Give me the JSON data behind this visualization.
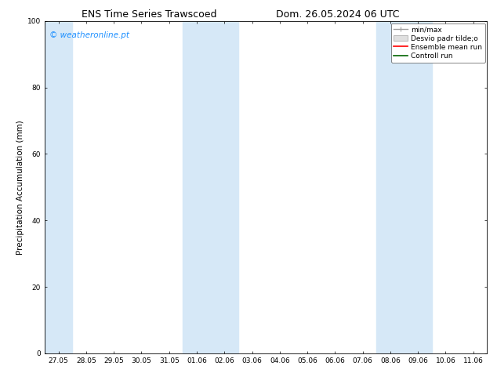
{
  "title_left": "ENS Time Series Trawscoed",
  "title_right": "Dom. 26.05.2024 06 UTC",
  "ylabel": "Precipitation Accumulation (mm)",
  "ylim": [
    0,
    100
  ],
  "yticks": [
    0,
    20,
    40,
    60,
    80,
    100
  ],
  "x_tick_labels": [
    "27.05",
    "28.05",
    "29.05",
    "30.05",
    "31.05",
    "01.06",
    "02.06",
    "03.06",
    "04.06",
    "05.06",
    "06.06",
    "07.06",
    "08.06",
    "09.06",
    "10.06",
    "11.06"
  ],
  "x_tick_positions": [
    0,
    1,
    2,
    3,
    4,
    5,
    6,
    7,
    8,
    9,
    10,
    11,
    12,
    13,
    14,
    15
  ],
  "xlim": [
    -0.5,
    15.5
  ],
  "shaded_regions": [
    {
      "x_start": -0.5,
      "x_end": 0.5,
      "color": "#d6e8f7"
    },
    {
      "x_start": 4.5,
      "x_end": 6.5,
      "color": "#d6e8f7"
    },
    {
      "x_start": 11.5,
      "x_end": 13.5,
      "color": "#d6e8f7"
    }
  ],
  "legend_entries": [
    {
      "label": "min/max",
      "color": "#a0a0a0"
    },
    {
      "label": "Desvio padr tilde;o",
      "facecolor": "#e0e0e0",
      "edgecolor": "#a0a0a0"
    },
    {
      "label": "Ensemble mean run",
      "color": "#ff0000"
    },
    {
      "label": "Controll run",
      "color": "#006400"
    }
  ],
  "watermark_text": "© weatheronline.pt",
  "watermark_color": "#1e90ff",
  "watermark_fontsize": 7.5,
  "bg_color": "#ffffff",
  "plot_bg_color": "#ffffff",
  "title_fontsize": 9,
  "tick_fontsize": 6.5,
  "ylabel_fontsize": 7.5,
  "legend_fontsize": 6.5
}
